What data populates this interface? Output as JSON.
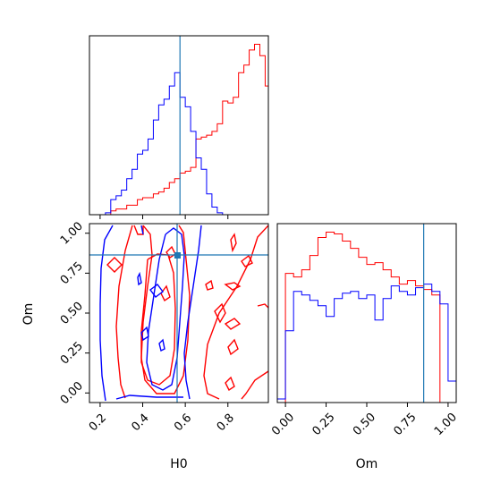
{
  "chart_data": {
    "type": "corner",
    "truth": {
      "H0": 0.575,
      "Om": 0.85
    },
    "colors": {
      "series_a": "#ff0000",
      "series_b": "#0000ff",
      "truth": "#1f77b4"
    },
    "grid": false,
    "panels": [
      {
        "type": "histogram",
        "position": "top-left",
        "xlim": [
          0.15,
          0.99
        ],
        "xticks_shown": false,
        "xlabel": "",
        "ylabel": "",
        "series": [
          {
            "color": "#ff0000",
            "bin_edges": [
              0.15,
              0.175,
              0.2,
              0.225,
              0.25,
              0.275,
              0.3,
              0.325,
              0.35,
              0.375,
              0.4,
              0.425,
              0.45,
              0.475,
              0.5,
              0.525,
              0.55,
              0.575,
              0.6,
              0.625,
              0.65,
              0.675,
              0.7,
              0.725,
              0.75,
              0.775,
              0.8,
              0.825,
              0.85,
              0.875,
              0.9,
              0.925,
              0.95,
              0.975,
              1.0
            ],
            "heights": [
              0,
              0,
              0,
              0,
              2,
              3,
              3,
              5,
              5,
              8,
              9,
              9,
              11,
              12,
              14,
              17,
              19,
              22,
              23,
              25,
              40,
              41,
              42,
              44,
              48,
              60,
              59,
              62,
              75,
              79,
              87,
              90,
              84,
              68
            ]
          },
          {
            "color": "#0000ff",
            "bin_edges": [
              0.15,
              0.175,
              0.2,
              0.225,
              0.25,
              0.275,
              0.3,
              0.325,
              0.35,
              0.375,
              0.4,
              0.425,
              0.45,
              0.475,
              0.5,
              0.525,
              0.55,
              0.575,
              0.6,
              0.625,
              0.65,
              0.675,
              0.7,
              0.725,
              0.75,
              0.775,
              0.8,
              0.825,
              0.85,
              0.875,
              0.9,
              0.925,
              0.95,
              0.975,
              1.0
            ],
            "heights": [
              0,
              0,
              0,
              1,
              8,
              10,
              13,
              19,
              24,
              32,
              34,
              40,
              50,
              58,
              61,
              68,
              75,
              62,
              57,
              44,
              30,
              24,
              11,
              4,
              1,
              0,
              0,
              0,
              0,
              0,
              0,
              0,
              0,
              0
            ]
          }
        ]
      },
      {
        "type": "contour",
        "position": "bottom-left",
        "xlim": [
          0.15,
          0.99
        ],
        "ylim": [
          -0.06,
          1.06
        ],
        "xticks": [
          "0.2",
          "0.4",
          "0.6",
          "0.8"
        ],
        "yticks": [
          "0.00",
          "0.25",
          "0.50",
          "0.75",
          "1.00"
        ],
        "xlabel": "H0",
        "ylabel": "Om"
      },
      {
        "type": "histogram",
        "position": "bottom-right",
        "xlim": [
          -0.05,
          1.05
        ],
        "xticks": [
          "0.00",
          "0.25",
          "0.50",
          "0.75",
          "1.00"
        ],
        "xlabel": "Om",
        "ylabel": "",
        "series": [
          {
            "color": "#ff0000",
            "bin_edges": [
              -0.05,
              0.0,
              0.05,
              0.1,
              0.15,
              0.2,
              0.25,
              0.3,
              0.35,
              0.4,
              0.45,
              0.5,
              0.55,
              0.6,
              0.65,
              0.7,
              0.75,
              0.8,
              0.85,
              0.9,
              0.95,
              1.0
            ],
            "heights": [
              0,
              72,
              70,
              74,
              82,
              92,
              95,
              94,
              90,
              86,
              81,
              77,
              78,
              74,
              70,
              66,
              68,
              65,
              63,
              60,
              0
            ]
          },
          {
            "color": "#0000ff",
            "bin_edges": [
              -0.05,
              0.0,
              0.05,
              0.1,
              0.15,
              0.2,
              0.25,
              0.3,
              0.35,
              0.4,
              0.45,
              0.5,
              0.55,
              0.6,
              0.65,
              0.7,
              0.75,
              0.8,
              0.85,
              0.9,
              0.95,
              1.0,
              1.05
            ],
            "heights": [
              2,
              40,
              62,
              60,
              57,
              54,
              48,
              58,
              61,
              62,
              58,
              60,
              46,
              58,
              65,
              62,
              60,
              64,
              66,
              62,
              55,
              12
            ]
          }
        ]
      }
    ]
  }
}
